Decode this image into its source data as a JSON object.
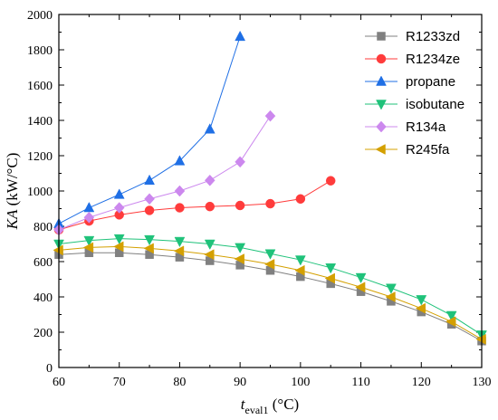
{
  "chart_data": {
    "type": "line",
    "xlabel": {
      "main": "t",
      "sub": "eval1",
      "unit": " (°C)"
    },
    "ylabel": {
      "main": "KA",
      "unit": " (kW/°C)"
    },
    "xlim": [
      60,
      130
    ],
    "ylim": [
      0,
      2000
    ],
    "xticks": [
      60,
      70,
      80,
      90,
      100,
      110,
      120,
      130
    ],
    "yticks": [
      0,
      200,
      400,
      600,
      800,
      1000,
      1200,
      1400,
      1600,
      1800,
      2000
    ],
    "grid": false,
    "legend_position": "top-right",
    "series": [
      {
        "name": "R1233zd",
        "color": "#808080",
        "marker": "square",
        "x": [
          60,
          65,
          70,
          75,
          80,
          85,
          90,
          95,
          100,
          105,
          110,
          115,
          120,
          125,
          130
        ],
        "y": [
          640,
          650,
          650,
          640,
          625,
          605,
          580,
          550,
          515,
          475,
          430,
          375,
          315,
          245,
          150
        ]
      },
      {
        "name": "R1234ze",
        "color": "#ff3b3b",
        "marker": "circle",
        "x": [
          60,
          65,
          70,
          75,
          80,
          85,
          90,
          95,
          100,
          105
        ],
        "y": [
          780,
          830,
          865,
          890,
          905,
          912,
          918,
          928,
          955,
          1058
        ]
      },
      {
        "name": "propane",
        "color": "#1f6fe5",
        "marker": "triangle-up",
        "x": [
          60,
          65,
          70,
          75,
          80,
          85,
          90
        ],
        "y": [
          815,
          905,
          980,
          1060,
          1170,
          1350,
          1875
        ]
      },
      {
        "name": "isobutane",
        "color": "#1fc27a",
        "marker": "triangle-down",
        "x": [
          60,
          65,
          70,
          75,
          80,
          85,
          90,
          95,
          100,
          105,
          110,
          115,
          120,
          125,
          130
        ],
        "y": [
          700,
          720,
          730,
          725,
          715,
          700,
          680,
          645,
          610,
          565,
          510,
          450,
          385,
          295,
          185
        ]
      },
      {
        "name": "R134a",
        "color": "#cc88ee",
        "marker": "diamond",
        "x": [
          60,
          65,
          70,
          75,
          80,
          85,
          90,
          95
        ],
        "y": [
          780,
          850,
          905,
          955,
          1000,
          1060,
          1165,
          1425
        ]
      },
      {
        "name": "R245fa",
        "color": "#d4a000",
        "marker": "triangle-left",
        "x": [
          60,
          65,
          70,
          75,
          80,
          85,
          90,
          95,
          100,
          105,
          110,
          115,
          120,
          125,
          130
        ],
        "y": [
          665,
          680,
          685,
          675,
          660,
          640,
          615,
          585,
          550,
          505,
          455,
          400,
          335,
          260,
          160
        ]
      }
    ]
  }
}
